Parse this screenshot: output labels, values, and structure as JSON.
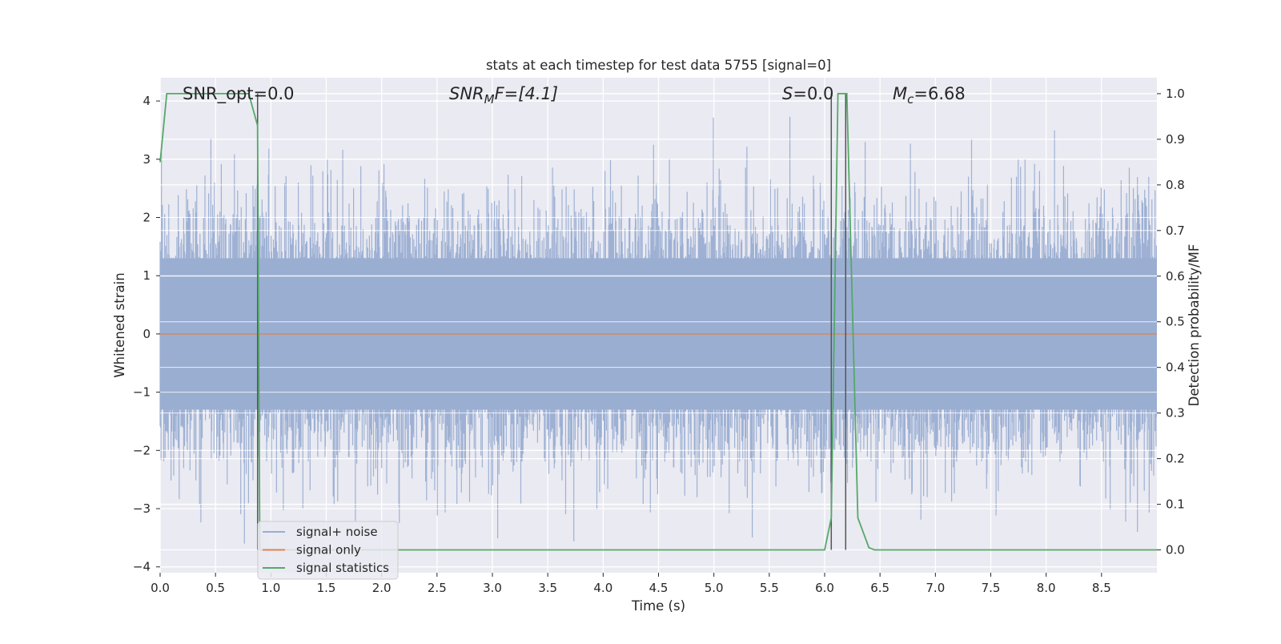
{
  "chart_data": {
    "type": "line",
    "title": "stats at each timestep for test data 5755 [signal=0]",
    "xlabel": "Time (s)",
    "ylabel": "Whitened strain",
    "y2label": "Detection probability/MF",
    "xlim": [
      0.0,
      9.0
    ],
    "ylim": [
      -4.1,
      4.4
    ],
    "y2lim": [
      -0.05,
      1.035
    ],
    "xticks": [
      "0.0",
      "0.5",
      "1.0",
      "1.5",
      "2.0",
      "2.5",
      "3.0",
      "3.5",
      "4.0",
      "4.5",
      "5.0",
      "5.5",
      "6.0",
      "6.5",
      "7.0",
      "7.5",
      "8.0",
      "8.5"
    ],
    "yticks": [
      "4",
      "3",
      "2",
      "1",
      "0",
      "−1",
      "−2",
      "−3",
      "−4"
    ],
    "y2ticks": [
      "1.0",
      "0.9",
      "0.8",
      "0.7",
      "0.6",
      "0.5",
      "0.4",
      "0.3",
      "0.2",
      "0.1",
      "0.0"
    ],
    "grid": true,
    "legend_position": "lower-left",
    "annotations": {
      "snr_opt": "SNR_opt=0.0",
      "snr_mf_base": "SNR",
      "snr_mf_sub": "M",
      "snr_mf_rest": "F=[4.1]",
      "s_italic": "S",
      "s_rest": "=0.0",
      "mc_base": "M",
      "mc_sub": "c",
      "mc_rest": "=6.68"
    },
    "series": [
      {
        "name": "signal+ noise",
        "color": "#4c72b0",
        "description_note": "dense noise, roughly ±2.5 with spikes up to ±4",
        "envelope": {
          "typical_max": 2.2,
          "typical_min": -2.2,
          "peak_max": 4.0,
          "peak_min": -3.6
        }
      },
      {
        "name": "signal only",
        "color": "#dd8452",
        "x": [
          0.0,
          9.0
        ],
        "y": [
          0.0,
          0.0
        ]
      },
      {
        "name": "signal statistics",
        "color": "#55a868",
        "axis": "right",
        "x": [
          0.0,
          0.06,
          0.12,
          0.8,
          0.88,
          0.9,
          0.95,
          6.0,
          6.06,
          6.12,
          6.2,
          6.3,
          6.4,
          6.45,
          9.0
        ],
        "y": [
          0.85,
          1.0,
          1.0,
          1.0,
          0.93,
          0.0,
          0.0,
          0.0,
          0.07,
          1.0,
          1.0,
          0.07,
          0.005,
          0.0,
          0.0
        ]
      }
    ],
    "vlines": {
      "color": "#555555",
      "x": [
        0.88,
        6.06,
        6.19
      ],
      "y_range": [
        0.0,
        1.0
      ]
    }
  },
  "theme": {
    "plot_bg": "#eaeaf2",
    "grid": "#ffffff",
    "noise_color": "#9aaed2"
  }
}
